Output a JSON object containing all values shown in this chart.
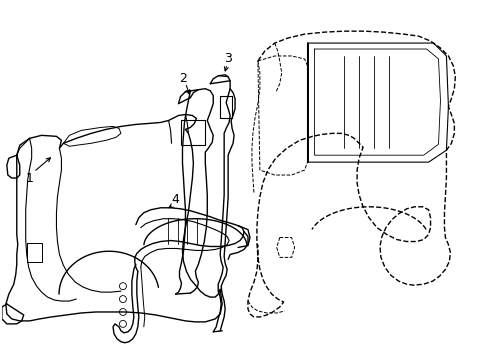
{
  "bg_color": "#ffffff",
  "line_color": "#000000",
  "line_width": 1.0,
  "fig_width": 4.89,
  "fig_height": 3.6,
  "dpi": 100
}
